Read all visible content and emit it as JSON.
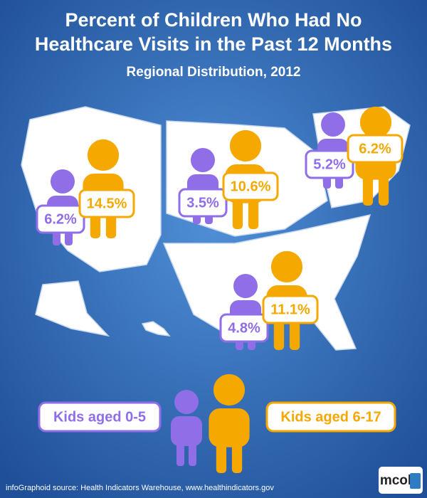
{
  "header": {
    "title_lines": [
      "Percent of Children Who Had No",
      "Healthcare Visits in the Past 12 Months"
    ],
    "subtitle": "Regional Distribution, 2012"
  },
  "regions": [
    {
      "kids_0_5": "6.2%",
      "kids_6_17": "14.5%"
    },
    {
      "kids_0_5": "3.5%",
      "kids_6_17": "10.6%"
    },
    {
      "kids_0_5": "5.2%",
      "kids_6_17": "6.2%"
    },
    {
      "kids_0_5": "4.8%",
      "kids_6_17": "11.1%"
    }
  ],
  "legend": {
    "kids_0_5": "Kids aged 0-5",
    "kids_6_17": "Kids aged 6-17"
  },
  "footer": {
    "source": "infoGraphoid source:  Health Indicators Warehouse, www.healthindicators.gov",
    "logo": "mcol"
  }
}
